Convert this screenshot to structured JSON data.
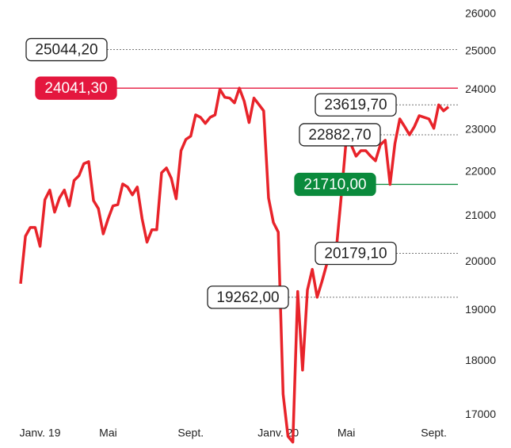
{
  "chart_data": {
    "type": "line",
    "log": true,
    "categories": [
      null,
      null,
      null,
      null,
      "Janv. 19",
      null,
      null,
      null,
      null,
      null,
      null,
      null,
      null,
      null,
      null,
      null,
      null,
      null,
      "Mai",
      null,
      null,
      null,
      null,
      null,
      null,
      null,
      null,
      null,
      null,
      null,
      null,
      null,
      null,
      null,
      null,
      "Sept.",
      null,
      null,
      null,
      null,
      null,
      null,
      null,
      null,
      null,
      null,
      null,
      null,
      null,
      null,
      null,
      null,
      null,
      "Janv. 20",
      null,
      null,
      null,
      null,
      null,
      null,
      null,
      null,
      null,
      null,
      null,
      null,
      null,
      "Mai",
      null,
      null,
      null,
      null,
      null,
      null,
      null,
      null,
      null,
      null,
      null,
      null,
      null,
      null,
      null,
      null,
      null,
      "Sept.",
      null,
      null,
      null
    ],
    "series": [
      {
        "color": "#e8232a",
        "values": [
          19540,
          20550,
          20740,
          20740,
          20330,
          21360,
          21580,
          21080,
          21400,
          21580,
          21220,
          21800,
          21910,
          22190,
          22240,
          21340,
          21160,
          20600,
          20930,
          21220,
          21250,
          21720,
          21650,
          21470,
          21650,
          20930,
          20420,
          20690,
          20690,
          21980,
          22090,
          21850,
          21380,
          22500,
          22770,
          22850,
          23370,
          23310,
          23160,
          23310,
          23370,
          24010,
          23810,
          23790,
          23670,
          24041.3,
          23710,
          23180,
          23790,
          23630,
          23470,
          21400,
          20850,
          20640,
          17380,
          16620,
          16520,
          19380,
          17830,
          19410,
          19840,
          19262,
          19590,
          19960,
          20179.1,
          20330,
          21490,
          22790,
          22640,
          22370,
          22500,
          22500,
          22370,
          22260,
          22640,
          22750,
          21710,
          22670,
          23270,
          23080,
          22882.7,
          23080,
          23350,
          23310,
          23270,
          23040,
          23619.7,
          23470,
          23570
        ]
      }
    ],
    "ylim": [
      16500,
      26000
    ],
    "yticks": [
      17000,
      18000,
      19000,
      20000,
      21000,
      22000,
      23000,
      24000,
      25000,
      26000
    ],
    "annotations": [
      {
        "value": 25044.2,
        "label": "25044,20"
      },
      {
        "value": 24041.3,
        "label": "24041,30",
        "color": "#e4173e"
      },
      {
        "value": 23619.7,
        "label": "23619,70"
      },
      {
        "value": 22882.7,
        "label": "22882,70"
      },
      {
        "value": 21710,
        "label": "21710,00",
        "color": "#0a8a3c"
      },
      {
        "value": 20179.1,
        "label": "20179,10"
      },
      {
        "value": 19262,
        "label": "19262,00"
      }
    ]
  }
}
